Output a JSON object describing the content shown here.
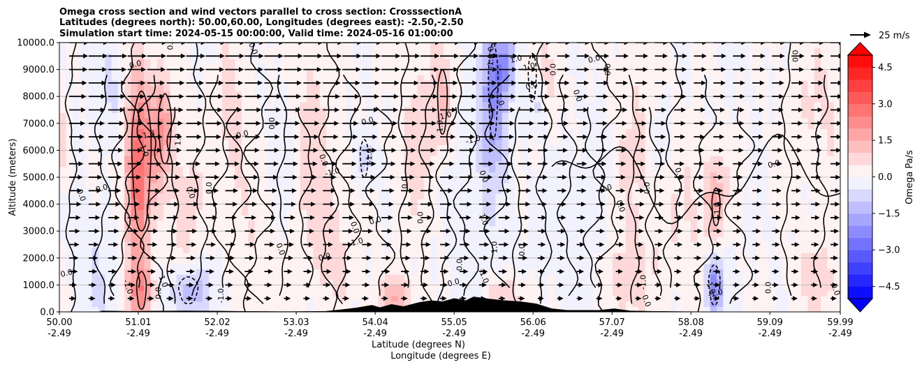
{
  "chart_data": {
    "type": "heatmap",
    "title_lines": [
      "Omega cross section and wind vectors parallel to cross section: CrosssectionA",
      "Latitudes (degrees north): 50.00,60.00, Longitudes (degrees east): -2.50,-2.50",
      "Simulation start time: 2024-05-15 00:00:00, Valid time: 2024-05-16 01:00:00"
    ],
    "xlabel": "Latitude (degrees N)",
    "xlabel2": "Longitude (degrees E)",
    "ylabel": "Altitude (meters)",
    "xlim": [
      50.0,
      59.99
    ],
    "ylim": [
      0,
      10000
    ],
    "x_ticks": [
      {
        "lat": "50.00",
        "lon": "-2.49"
      },
      {
        "lat": "51.01",
        "lon": "-2.49"
      },
      {
        "lat": "52.02",
        "lon": "-2.49"
      },
      {
        "lat": "53.03",
        "lon": "-2.49"
      },
      {
        "lat": "54.04",
        "lon": "-2.49"
      },
      {
        "lat": "55.05",
        "lon": "-2.49"
      },
      {
        "lat": "56.06",
        "lon": "-2.49"
      },
      {
        "lat": "57.07",
        "lon": "-2.49"
      },
      {
        "lat": "58.08",
        "lon": "-2.49"
      },
      {
        "lat": "59.09",
        "lon": "-2.49"
      },
      {
        "lat": "59.99",
        "lon": "-2.49"
      }
    ],
    "y_ticks": [
      "0.0",
      "1000.0",
      "2000.0",
      "3000.0",
      "4000.0",
      "5000.0",
      "6000.0",
      "7000.0",
      "8000.0",
      "9000.0",
      "10000.0"
    ],
    "colorbar": {
      "label": "Omega Pa/s",
      "ticks": [
        "4.5",
        "3.0",
        "1.5",
        "0.0",
        "−1.5",
        "−3.0",
        "−4.5"
      ],
      "range": [
        -5.0,
        5.0
      ],
      "step": 0.5,
      "cmap": "bwr",
      "extend": "both"
    },
    "quiver_key": "25 m/s",
    "contour_levels": [
      -1.0,
      0.0,
      1.0
    ],
    "contour_labels": [
      {
        "text": "0.0",
        "lat": 51.45,
        "z": 9950
      },
      {
        "text": "0.0",
        "lat": 52.45,
        "z": 9750
      },
      {
        "text": "0.0",
        "lat": 50.98,
        "z": 9100
      },
      {
        "text": "0.0",
        "lat": 59.45,
        "z": 9500
      },
      {
        "text": "0.0",
        "lat": 50.25,
        "z": 4300
      },
      {
        "text": "0.0",
        "lat": 50.55,
        "z": 4500
      },
      {
        "text": "0.0",
        "lat": 51.95,
        "z": 4600
      },
      {
        "text": "0.0",
        "lat": 51.65,
        "z": 4400
      },
      {
        "text": "0.0",
        "lat": 52.35,
        "z": 6500
      },
      {
        "text": "0.0",
        "lat": 52.75,
        "z": 7000
      },
      {
        "text": "0.0",
        "lat": 53.35,
        "z": 5600
      },
      {
        "text": "0.0",
        "lat": 53.95,
        "z": 7000
      },
      {
        "text": "0.0",
        "lat": 54.45,
        "z": 4800
      },
      {
        "text": "0.0",
        "lat": 53.75,
        "z": 3100
      },
      {
        "text": "0.0",
        "lat": 54.05,
        "z": 3300
      },
      {
        "text": "0.0",
        "lat": 54.65,
        "z": 3500
      },
      {
        "text": "0.0",
        "lat": 52.8,
        "z": 2300
      },
      {
        "text": "0.0",
        "lat": 53.4,
        "z": 1950
      },
      {
        "text": "0.0",
        "lat": 55.15,
        "z": 1750
      },
      {
        "text": "0.0",
        "lat": 55.5,
        "z": 9600
      },
      {
        "text": "0.0",
        "lat": 56.05,
        "z": 8300
      },
      {
        "text": "0.0",
        "lat": 56.35,
        "z": 9000
      },
      {
        "text": "0.0",
        "lat": 56.6,
        "z": 8000
      },
      {
        "text": "0.0",
        "lat": 56.85,
        "z": 9300
      },
      {
        "text": "0.0",
        "lat": 57.05,
        "z": 9000
      },
      {
        "text": "0.0",
        "lat": 57.15,
        "z": 3900
      },
      {
        "text": "0.0",
        "lat": 57.0,
        "z": 4500
      },
      {
        "text": "0.0",
        "lat": 57.55,
        "z": 4600
      },
      {
        "text": "0.0",
        "lat": 57.9,
        "z": 5100
      },
      {
        "text": "0.0",
        "lat": 59.15,
        "z": 5400
      },
      {
        "text": "0.0",
        "lat": 59.1,
        "z": 900
      },
      {
        "text": "0.0",
        "lat": 59.9,
        "z": 800
      },
      {
        "text": "0.0",
        "lat": 50.1,
        "z": 1350
      },
      {
        "text": "0.0",
        "lat": 51.3,
        "z": 700
      },
      {
        "text": "0.0",
        "lat": 57.48,
        "z": 380
      },
      {
        "text": "0.0",
        "lat": 55.05,
        "z": 1000
      },
      {
        "text": "0.0",
        "lat": 55.95,
        "z": 2300
      },
      {
        "text": "0.0",
        "lat": 55.4,
        "z": 5000
      },
      {
        "text": "1.0",
        "lat": 51.15,
        "z": 6500
      },
      {
        "text": "1.0",
        "lat": 51.55,
        "z": 6400
      },
      {
        "text": "1.0",
        "lat": 51.3,
        "z": 1100
      },
      {
        "text": "1.0",
        "lat": 54.95,
        "z": 7200
      },
      {
        "text": "1.0",
        "lat": 54.9,
        "z": 6900
      },
      {
        "text": "1.0",
        "lat": 55.4,
        "z": 3400
      },
      {
        "text": "1.0",
        "lat": 55.85,
        "z": 9300
      },
      {
        "text": "1.0",
        "lat": 55.6,
        "z": 2400
      },
      {
        "text": "-1.0",
        "lat": 51.05,
        "z": 6000
      },
      {
        "text": "-1.0",
        "lat": 53.5,
        "z": 5100
      },
      {
        "text": "-1.0",
        "lat": 54.0,
        "z": 5800
      },
      {
        "text": "-1.0",
        "lat": 55.4,
        "z": 1300
      },
      {
        "text": "-1.0",
        "lat": 55.3,
        "z": 6300
      },
      {
        "text": "-1.0",
        "lat": 55.55,
        "z": 9300
      },
      {
        "text": "-1.0",
        "lat": 55.6,
        "z": 7900
      },
      {
        "text": "-1.0",
        "lat": 56.0,
        "z": 9000
      },
      {
        "text": "-1.0",
        "lat": 52.1,
        "z": 600
      },
      {
        "text": "-1.0",
        "lat": 50.85,
        "z": 900
      },
      {
        "text": "-1.0",
        "lat": 53.8,
        "z": 2500
      },
      {
        "text": "-1.0",
        "lat": 57.5,
        "z": 1100
      },
      {
        "text": "-1.0",
        "lat": 58.3,
        "z": 900
      },
      {
        "text": "-1.0",
        "lat": 58.4,
        "z": 600
      },
      {
        "text": "-1.0",
        "lat": 58.45,
        "z": 3800
      }
    ]
  }
}
